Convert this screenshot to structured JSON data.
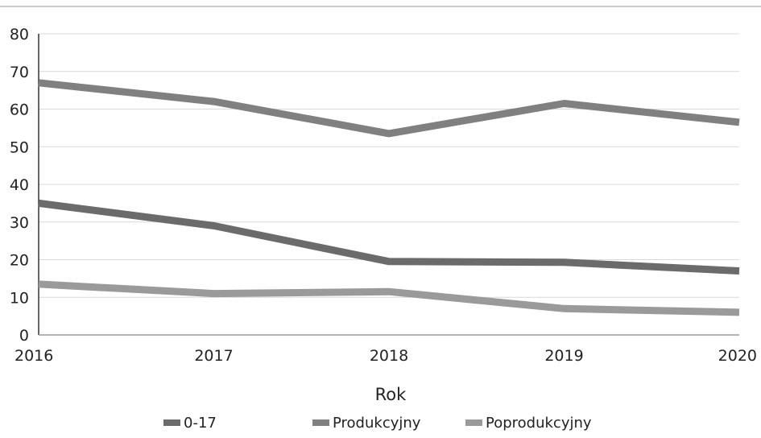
{
  "chart_data": {
    "type": "line",
    "title": "",
    "xlabel": "Rok",
    "ylabel": "",
    "x": [
      "2016",
      "2017",
      "2018",
      "2019",
      "2020"
    ],
    "ylim": [
      0,
      80
    ],
    "yticks": [
      0,
      10,
      20,
      30,
      40,
      50,
      60,
      70,
      80
    ],
    "grid": true,
    "legend_position": "bottom",
    "series": [
      {
        "name": "0-17",
        "values": [
          35,
          29,
          19.5,
          19.3,
          17
        ],
        "color": "#6b6b6b"
      },
      {
        "name": "Produkcyjny",
        "values": [
          67,
          62,
          53.5,
          61.5,
          56.5
        ],
        "color": "#808080"
      },
      {
        "name": "Poprodukcyjny",
        "values": [
          13.5,
          11,
          11.5,
          7,
          6
        ],
        "color": "#9a9a9a"
      }
    ]
  }
}
